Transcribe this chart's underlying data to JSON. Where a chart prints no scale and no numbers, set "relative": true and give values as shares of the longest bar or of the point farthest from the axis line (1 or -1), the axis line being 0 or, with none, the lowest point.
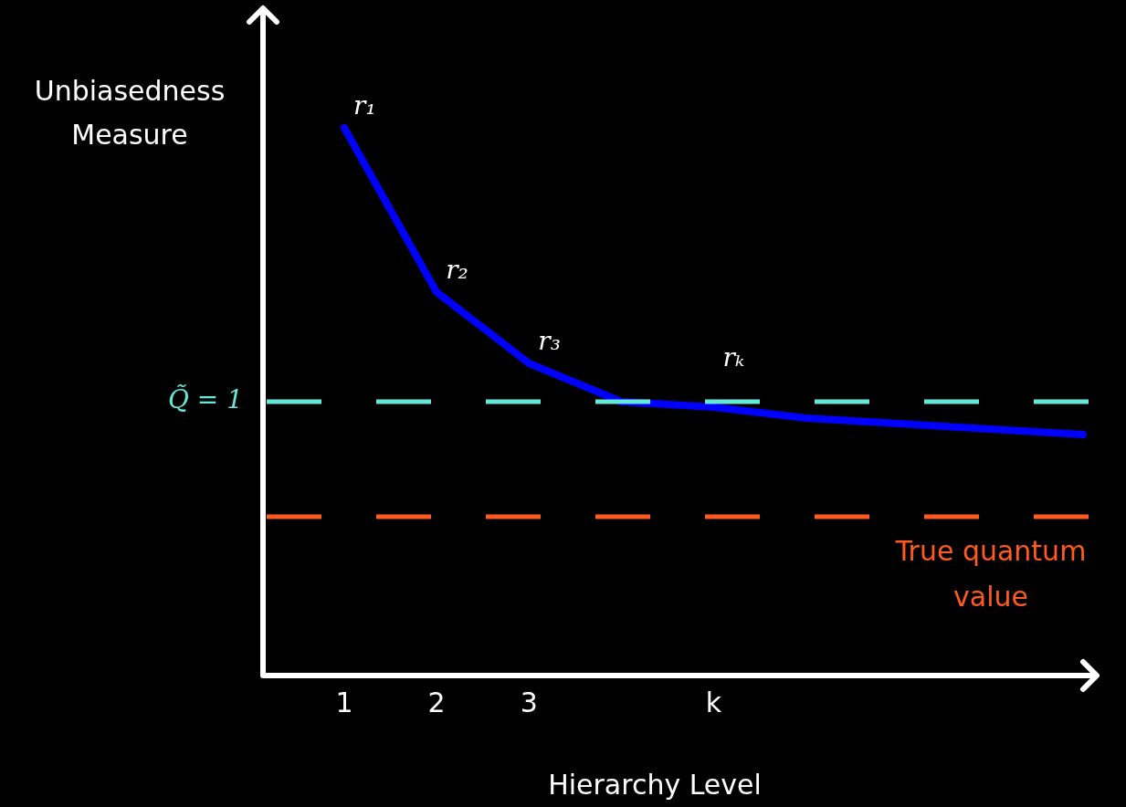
{
  "chart_data": {
    "type": "line",
    "relative": true,
    "xlabel": "Hierarchy Level",
    "ylabel": "Unbiasedness Measure",
    "categories": [
      "1",
      "2",
      "3",
      null,
      "k",
      null,
      null,
      null,
      null
    ],
    "series": [
      {
        "color": "#0000ff",
        "values": [
          1,
          0.7,
          0.57,
          0.5,
          0.49,
          0.47,
          null,
          null,
          0.44
        ]
      }
    ],
    "ref_lines": [
      {
        "axis": "y",
        "value": 0.5,
        "label": "Q̃ = 1",
        "color": "#66e8d8",
        "line_style": "dashed"
      },
      {
        "axis": "y",
        "value": 0.29,
        "label": "True quantum value",
        "color": "#ff5a1f",
        "line_style": "dashed"
      }
    ],
    "annotations": [
      {
        "text": "r₁",
        "x": "1",
        "y": 1
      },
      {
        "text": "r₂",
        "x": "2",
        "y": 0.7
      },
      {
        "text": "r₃",
        "x": "3",
        "y": 0.57
      },
      {
        "text": "rₖ",
        "x": "k",
        "y": 0.49
      }
    ],
    "legend": false
  }
}
